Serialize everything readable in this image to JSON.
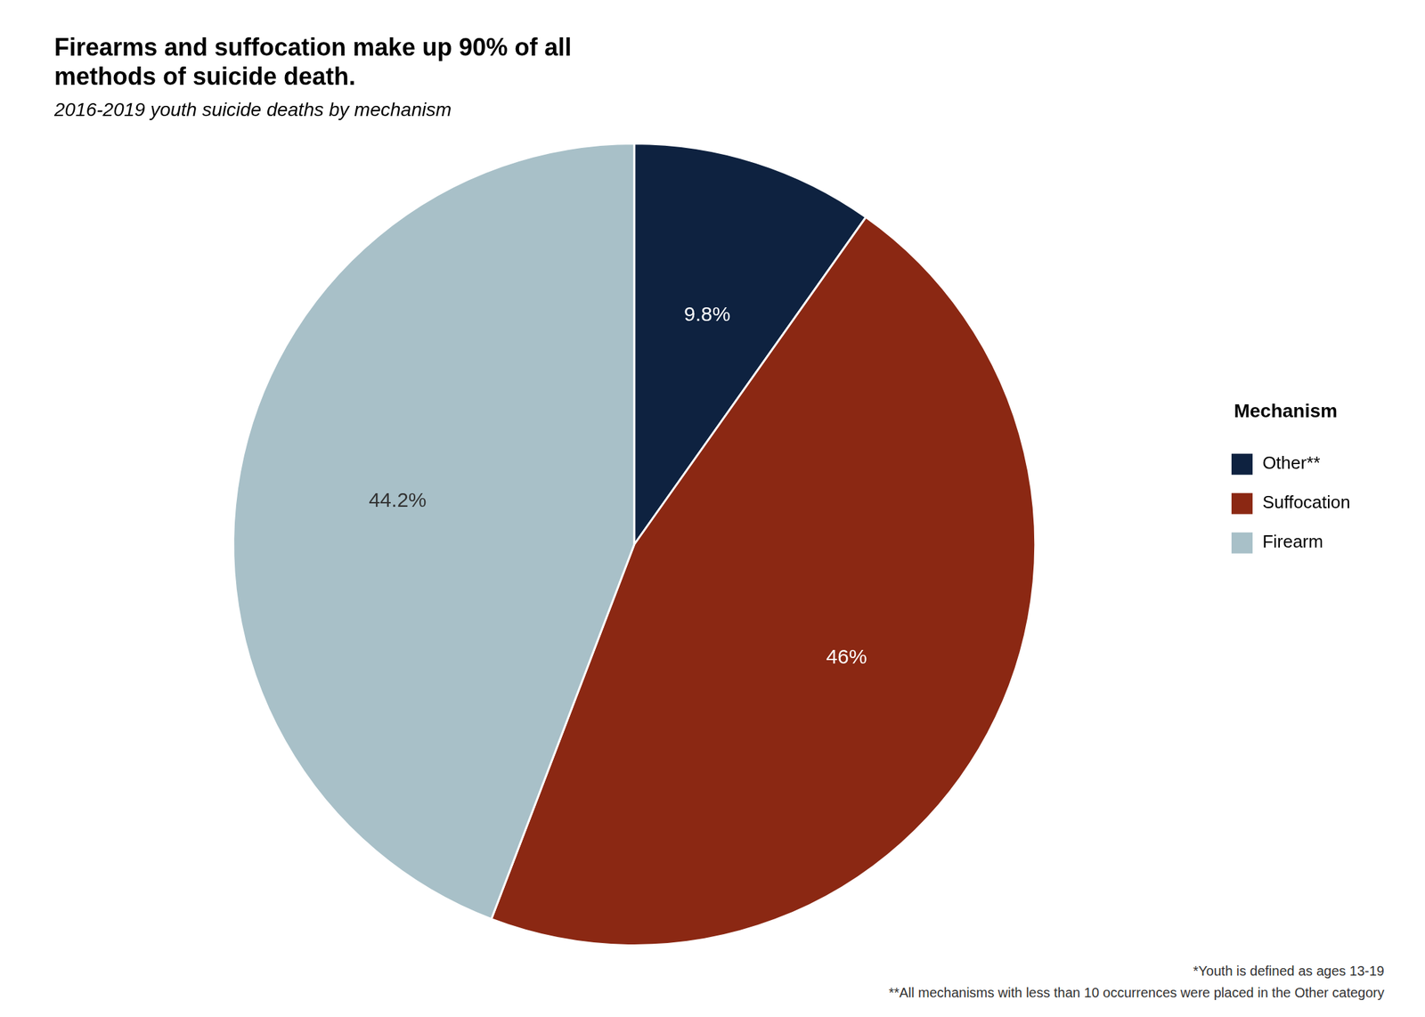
{
  "chart_data": {
    "type": "pie",
    "title": "Firearms and suffocation make up 90% of all\nmethods of suicide death.",
    "subtitle": "2016-2019 youth suicide deaths by mechanism",
    "categories": [
      "Other**",
      "Suffocation",
      "Firearm"
    ],
    "values": [
      9.8,
      46.0,
      44.2
    ],
    "value_labels": [
      "9.8%",
      "46%",
      "44.2%"
    ],
    "data_labels": true,
    "colors": [
      "#0e2240",
      "#8b2813",
      "#a8c0c8"
    ],
    "legend": "right",
    "legend_title": "Mechanism",
    "annotations": [
      "*Youth is defined as ages 13-19",
      "**All mechanisms with less than 10 occurrences were placed in the Other category"
    ]
  }
}
